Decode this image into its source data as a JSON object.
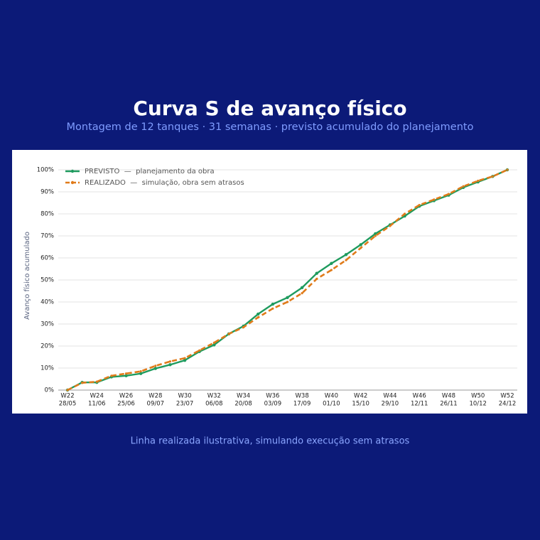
{
  "chart_data": {
    "type": "line",
    "title": "Curva S de avanço físico",
    "subtitle": "Montagem de 12 tanques  ·  31 semanas  ·  previsto acumulado do planejamento",
    "y_label": "Avanço físico acumulado",
    "footnote": "Linha realizada ilustrativa, simulando execução sem atrasos",
    "categories": [
      "W22",
      null,
      "W24",
      null,
      "W26",
      null,
      "W28",
      null,
      "W30",
      null,
      "W32",
      null,
      "W34",
      null,
      "W36",
      null,
      "W38",
      null,
      "W40",
      null,
      "W42",
      null,
      "W44",
      null,
      "W46",
      null,
      "W48",
      null,
      "W50",
      null,
      "W52"
    ],
    "category_dates": [
      "28/05",
      null,
      "11/06",
      null,
      "25/06",
      null,
      "09/07",
      null,
      "23/07",
      null,
      "06/08",
      null,
      "20/08",
      null,
      "03/09",
      null,
      "17/09",
      null,
      "01/10",
      null,
      "15/10",
      null,
      "29/10",
      null,
      "12/11",
      null,
      "26/11",
      null,
      "10/12",
      null,
      "24/12"
    ],
    "series": [
      {
        "name": "PREVISTO  —  planejamento da obra",
        "color": "#1e9b5e",
        "dashed": false,
        "values": [
          0,
          3.5,
          3.5,
          6,
          6.5,
          7.5,
          9.8,
          11.5,
          13.5,
          17.5,
          20.5,
          25.5,
          29,
          34.5,
          39,
          42,
          46.5,
          53,
          57.5,
          61.5,
          66,
          71,
          75,
          79,
          83.5,
          86,
          88.5,
          92,
          94.5,
          97,
          100
        ]
      },
      {
        "name": "REALIZADO  —  simulação, obra sem atrasos",
        "color": "#e07b1a",
        "dashed": true,
        "values": [
          0,
          3.3,
          3.8,
          6.5,
          7.5,
          8.5,
          11,
          13,
          14.5,
          18,
          21.5,
          25.5,
          28.5,
          33,
          37,
          40,
          44,
          50.5,
          54.5,
          59,
          64.5,
          70,
          74.5,
          80,
          84,
          86.5,
          89,
          92.5,
          95,
          97,
          100
        ]
      }
    ],
    "ylim": [
      0,
      100
    ],
    "yticks": [
      {
        "value": 0,
        "label": "0%"
      },
      {
        "value": 10,
        "label": "10%"
      },
      {
        "value": 20,
        "label": "20%"
      },
      {
        "value": 30,
        "label": "30%"
      },
      {
        "value": 40,
        "label": "40%"
      },
      {
        "value": 50,
        "label": "50%"
      },
      {
        "value": 60,
        "label": "60%"
      },
      {
        "value": 70,
        "label": "70%"
      },
      {
        "value": 80,
        "label": "80%"
      },
      {
        "value": 90,
        "label": "90%"
      },
      {
        "value": 100,
        "label": "100%"
      }
    ],
    "grid": true,
    "legend": "upper-left"
  }
}
